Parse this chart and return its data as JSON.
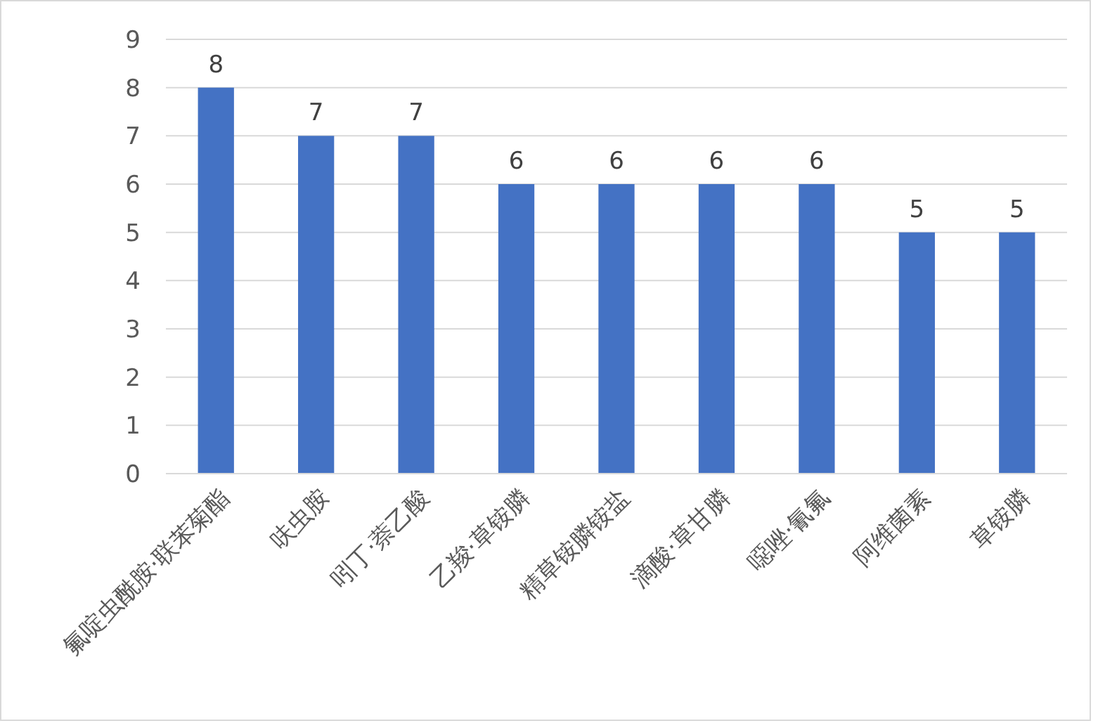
{
  "chart_data": {
    "type": "bar",
    "categories": [
      "氟啶虫酰胺·联苯菊酯",
      "呋虫胺",
      "吲丁·萘乙酸",
      "乙羧·草铵膦",
      "精草铵膦铵盐",
      "滴酸·草甘膦",
      "噁唑·氰氟",
      "阿维菌素",
      "草铵膦"
    ],
    "values": [
      8,
      7,
      7,
      6,
      6,
      6,
      6,
      5,
      5
    ],
    "color": "#4472c4",
    "ylim": [
      0,
      9
    ],
    "yticks": [
      0,
      1,
      2,
      3,
      4,
      5,
      6,
      7,
      8,
      9
    ],
    "grid": "y",
    "data_labels": true
  }
}
